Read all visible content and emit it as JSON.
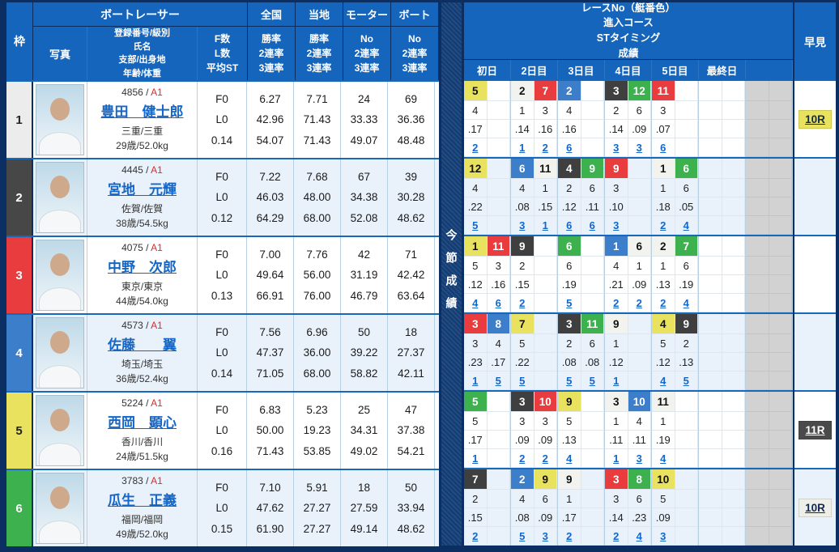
{
  "header": {
    "waku": "枠",
    "boat_racer": "ボートレーサー",
    "photo": "写真",
    "profile_lines": [
      "登録番号/級別",
      "氏名",
      "支部/出身地",
      "年齢/体重"
    ],
    "fl_lines": [
      "F数",
      "L数",
      "平均ST"
    ],
    "stat_groups": [
      {
        "label": "全国",
        "sub": [
          "勝率",
          "2連率",
          "3連率"
        ]
      },
      {
        "label": "当地",
        "sub": [
          "勝率",
          "2連率",
          "3連率"
        ]
      },
      {
        "label": "モーター",
        "sub": [
          "No",
          "2連率",
          "3連率"
        ]
      },
      {
        "label": "ボート",
        "sub": [
          "No",
          "2連率",
          "3連率"
        ]
      }
    ],
    "race_info_lines": [
      "レースNo（艇番色）",
      "進入コース",
      "STタイミング",
      "成績"
    ],
    "day_labels": [
      "初日",
      "2日目",
      "3日目",
      "4日目",
      "5日目",
      "最終日",
      ""
    ],
    "hayami": "早見",
    "konsetsu_band": "今節成績"
  },
  "colors": {
    "header_blue": "#1565bd",
    "navy": "#0b2f63",
    "link_blue": "#1467c8",
    "boat_white": "#f2f2ee",
    "boat_black": "#3f3f3f",
    "boat_red": "#e83c3f",
    "boat_blue": "#3c7ec9",
    "boat_yellow": "#e9e25f",
    "boat_green": "#3cb14d"
  },
  "racers": [
    {
      "waku": "1",
      "waku_color": "white",
      "reg": "4856",
      "class": "A1",
      "name": "豊田　健士郎",
      "branch": "三重/三重",
      "age": "29歳/52.0kg",
      "f": "F0",
      "l": "L0",
      "st": "0.14",
      "zenkoku": [
        "6.27",
        "42.96",
        "54.07"
      ],
      "touchi": [
        "7.71",
        "71.43",
        "71.43"
      ],
      "motor": [
        "24",
        "33.33",
        "49.07"
      ],
      "boat": [
        "69",
        "36.36",
        "48.48"
      ],
      "days": [
        [
          {
            "race": "5",
            "color": "yellow",
            "course": "4",
            "st": ".17",
            "result": "2"
          }
        ],
        [
          {
            "race": "2",
            "color": "white",
            "course": "1",
            "st": ".14",
            "result": "1"
          },
          {
            "race": "7",
            "color": "red",
            "course": "3",
            "st": ".16",
            "result": "2"
          }
        ],
        [
          {
            "race": "2",
            "color": "blue",
            "course": "4",
            "st": ".16",
            "result": "6"
          }
        ],
        [
          {
            "race": "3",
            "color": "black",
            "course": "2",
            "st": ".14",
            "result": "3"
          },
          {
            "race": "12",
            "color": "green",
            "course": "6",
            "st": ".09",
            "result": "3"
          }
        ],
        [
          {
            "race": "11",
            "color": "red",
            "course": "3",
            "st": ".07",
            "result": "6"
          }
        ],
        []
      ],
      "hayami": {
        "label": "10R",
        "color": "yellow"
      }
    },
    {
      "waku": "2",
      "waku_color": "black",
      "reg": "4445",
      "class": "A1",
      "name": "宮地　元輝",
      "branch": "佐賀/佐賀",
      "age": "38歳/54.5kg",
      "f": "F0",
      "l": "L0",
      "st": "0.12",
      "zenkoku": [
        "7.22",
        "46.03",
        "64.29"
      ],
      "touchi": [
        "7.68",
        "48.00",
        "68.00"
      ],
      "motor": [
        "67",
        "34.38",
        "52.08"
      ],
      "boat": [
        "39",
        "30.28",
        "48.62"
      ],
      "days": [
        [
          {
            "race": "12",
            "color": "yellow",
            "course": "4",
            "st": ".22",
            "result": "5"
          }
        ],
        [
          {
            "race": "6",
            "color": "blue",
            "course": "4",
            "st": ".08",
            "result": "3"
          },
          {
            "race": "11",
            "color": "white",
            "course": "1",
            "st": ".15",
            "result": "1"
          }
        ],
        [
          {
            "race": "4",
            "color": "black",
            "course": "2",
            "st": ".12",
            "result": "6"
          },
          {
            "race": "9",
            "color": "green",
            "course": "6",
            "st": ".11",
            "result": "6"
          }
        ],
        [
          {
            "race": "9",
            "color": "red",
            "course": "3",
            "st": ".10",
            "result": "3"
          }
        ],
        [
          {
            "race": "1",
            "color": "white",
            "course": "1",
            "st": ".18",
            "result": "2"
          },
          {
            "race": "6",
            "color": "green",
            "course": "6",
            "st": ".05",
            "result": "4"
          }
        ],
        []
      ],
      "hayami": null
    },
    {
      "waku": "3",
      "waku_color": "red",
      "reg": "4075",
      "class": "A1",
      "name": "中野　次郎",
      "branch": "東京/東京",
      "age": "44歳/54.0kg",
      "f": "F0",
      "l": "L0",
      "st": "0.13",
      "zenkoku": [
        "7.00",
        "49.64",
        "66.91"
      ],
      "touchi": [
        "7.76",
        "56.00",
        "76.00"
      ],
      "motor": [
        "42",
        "31.19",
        "46.79"
      ],
      "boat": [
        "71",
        "42.42",
        "63.64"
      ],
      "days": [
        [
          {
            "race": "1",
            "color": "yellow",
            "course": "5",
            "st": ".12",
            "result": "4"
          },
          {
            "race": "11",
            "color": "red",
            "course": "3",
            "st": ".16",
            "result": "6"
          }
        ],
        [
          {
            "race": "9",
            "color": "black",
            "course": "2",
            "st": ".15",
            "result": "2"
          }
        ],
        [
          {
            "race": "6",
            "color": "green",
            "course": "6",
            "st": ".19",
            "result": "5"
          }
        ],
        [
          {
            "race": "1",
            "color": "blue",
            "course": "4",
            "st": ".21",
            "result": "2"
          },
          {
            "race": "6",
            "color": "white",
            "course": "1",
            "st": ".09",
            "result": "2"
          }
        ],
        [
          {
            "race": "2",
            "color": "white",
            "course": "1",
            "st": ".13",
            "result": "2"
          },
          {
            "race": "7",
            "color": "green",
            "course": "6",
            "st": ".19",
            "result": "4"
          }
        ],
        []
      ],
      "hayami": null
    },
    {
      "waku": "4",
      "waku_color": "blue",
      "reg": "4573",
      "class": "A1",
      "name": "佐藤　　翼",
      "branch": "埼玉/埼玉",
      "age": "36歳/52.4kg",
      "f": "F0",
      "l": "L0",
      "st": "0.14",
      "zenkoku": [
        "7.56",
        "47.37",
        "71.05"
      ],
      "touchi": [
        "6.96",
        "36.00",
        "68.00"
      ],
      "motor": [
        "50",
        "39.22",
        "58.82"
      ],
      "boat": [
        "18",
        "27.37",
        "42.11"
      ],
      "days": [
        [
          {
            "race": "3",
            "color": "red",
            "course": "3",
            "st": ".23",
            "result": "1"
          },
          {
            "race": "8",
            "color": "blue",
            "course": "4",
            "st": ".17",
            "result": "5"
          }
        ],
        [
          {
            "race": "7",
            "color": "yellow",
            "course": "5",
            "st": ".22",
            "result": "5"
          }
        ],
        [
          {
            "race": "3",
            "color": "black",
            "course": "2",
            "st": ".08",
            "result": "5"
          },
          {
            "race": "11",
            "color": "green",
            "course": "6",
            "st": ".08",
            "result": "5"
          }
        ],
        [
          {
            "race": "9",
            "color": "white",
            "course": "1",
            "st": ".12",
            "result": "1"
          }
        ],
        [
          {
            "race": "4",
            "color": "yellow",
            "course": "5",
            "st": ".12",
            "result": "4"
          },
          {
            "race": "9",
            "color": "black",
            "course": "2",
            "st": ".13",
            "result": "5"
          }
        ],
        []
      ],
      "hayami": null
    },
    {
      "waku": "5",
      "waku_color": "yellow",
      "reg": "5224",
      "class": "A1",
      "name": "西岡　顕心",
      "branch": "香川/香川",
      "age": "24歳/51.5kg",
      "f": "F0",
      "l": "L0",
      "st": "0.16",
      "zenkoku": [
        "6.83",
        "50.00",
        "71.43"
      ],
      "touchi": [
        "5.23",
        "19.23",
        "53.85"
      ],
      "motor": [
        "25",
        "34.31",
        "49.02"
      ],
      "boat": [
        "47",
        "37.38",
        "54.21"
      ],
      "days": [
        [
          {
            "race": "5",
            "color": "green",
            "course": "5",
            "st": ".17",
            "result": "1"
          }
        ],
        [
          {
            "race": "3",
            "color": "black",
            "course": "3",
            "st": ".09",
            "result": "2"
          },
          {
            "race": "10",
            "color": "red",
            "course": "3",
            "st": ".09",
            "result": "2"
          }
        ],
        [
          {
            "race": "9",
            "color": "yellow",
            "course": "5",
            "st": ".13",
            "result": "4"
          }
        ],
        [
          {
            "race": "3",
            "color": "white",
            "course": "1",
            "st": ".11",
            "result": "1"
          },
          {
            "race": "10",
            "color": "blue",
            "course": "4",
            "st": ".11",
            "result": "3"
          }
        ],
        [
          {
            "race": "11",
            "color": "white",
            "course": "1",
            "st": ".19",
            "result": "4"
          }
        ],
        []
      ],
      "hayami": {
        "label": "11R",
        "color": "black"
      }
    },
    {
      "waku": "6",
      "waku_color": "green",
      "reg": "3783",
      "class": "A1",
      "name": "瓜生　正義",
      "branch": "福岡/福岡",
      "age": "49歳/52.0kg",
      "f": "F0",
      "l": "L0",
      "st": "0.15",
      "zenkoku": [
        "7.10",
        "47.62",
        "61.90"
      ],
      "touchi": [
        "5.91",
        "27.27",
        "27.27"
      ],
      "motor": [
        "18",
        "27.59",
        "49.14"
      ],
      "boat": [
        "50",
        "33.94",
        "48.62"
      ],
      "days": [
        [
          {
            "race": "7",
            "color": "black",
            "course": "2",
            "st": ".15",
            "result": "2"
          }
        ],
        [
          {
            "race": "2",
            "color": "blue",
            "course": "4",
            "st": ".08",
            "result": "5"
          },
          {
            "race": "9",
            "color": "yellow",
            "course": "6",
            "st": ".09",
            "result": "3"
          }
        ],
        [
          {
            "race": "9",
            "color": "white",
            "course": "1",
            "st": ".17",
            "result": "2"
          }
        ],
        [
          {
            "race": "3",
            "color": "red",
            "course": "3",
            "st": ".14",
            "result": "2"
          },
          {
            "race": "8",
            "color": "green",
            "course": "6",
            "st": ".23",
            "result": "4"
          }
        ],
        [
          {
            "race": "10",
            "color": "yellow",
            "course": "5",
            "st": ".09",
            "result": "3"
          }
        ],
        []
      ],
      "hayami": {
        "label": "10R",
        "color": "white"
      }
    }
  ]
}
